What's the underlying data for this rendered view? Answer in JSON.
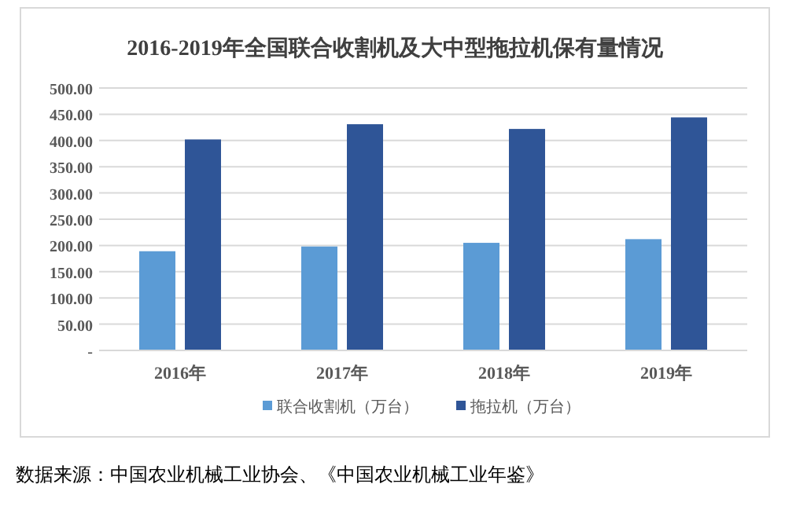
{
  "chart_data": {
    "type": "bar",
    "title": "2016-2019年全国联合收割机及大中型拖拉机保有量情况",
    "categories": [
      "2016年",
      "2017年",
      "2018年",
      "2019年"
    ],
    "series": [
      {
        "name": "联合收割机（万台）",
        "color": "#5b9bd5",
        "values": [
          189,
          198,
          205,
          212
        ]
      },
      {
        "name": "拖拉机（万台）",
        "color": "#2f5597",
        "values": [
          402,
          431,
          422,
          444
        ]
      }
    ],
    "ylim": [
      0,
      500
    ],
    "yticks": [
      {
        "value": 0,
        "label": "-"
      },
      {
        "value": 50,
        "label": "50.00"
      },
      {
        "value": 100,
        "label": "100.00"
      },
      {
        "value": 150,
        "label": "150.00"
      },
      {
        "value": 200,
        "label": "200.00"
      },
      {
        "value": 250,
        "label": "250.00"
      },
      {
        "value": 300,
        "label": "300.00"
      },
      {
        "value": 350,
        "label": "350.00"
      },
      {
        "value": 400,
        "label": "400.00"
      },
      {
        "value": 450,
        "label": "450.00"
      },
      {
        "value": 500,
        "label": "500.00"
      }
    ],
    "grid": "y",
    "legend": "bottom",
    "annotations": [
      "数据来源：中国农业机械工业协会、《中国农业机械工业年鉴》"
    ]
  }
}
